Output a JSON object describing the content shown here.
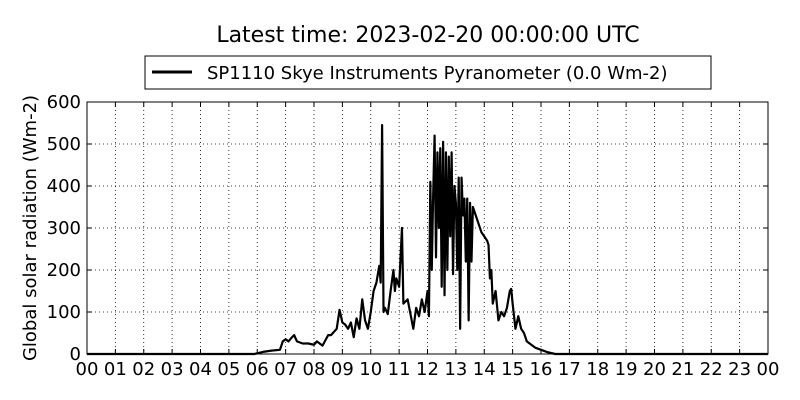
{
  "chart_data": {
    "type": "line",
    "title": "Latest time: 2023-02-20 00:00:00 UTC",
    "ylabel": "Global solar radiation (Wm-2)",
    "grid": true,
    "xlim": [
      0,
      24
    ],
    "ylim": [
      0,
      600
    ],
    "yticks": [
      0,
      100,
      200,
      300,
      400,
      500,
      600
    ],
    "xticks": [
      {
        "value": 0,
        "label": "00"
      },
      {
        "value": 1,
        "label": "01"
      },
      {
        "value": 2,
        "label": "02"
      },
      {
        "value": 3,
        "label": "03"
      },
      {
        "value": 4,
        "label": "04"
      },
      {
        "value": 5,
        "label": "05"
      },
      {
        "value": 6,
        "label": "06"
      },
      {
        "value": 7,
        "label": "07"
      },
      {
        "value": 8,
        "label": "08"
      },
      {
        "value": 9,
        "label": "09"
      },
      {
        "value": 10,
        "label": "10"
      },
      {
        "value": 11,
        "label": "11"
      },
      {
        "value": 12,
        "label": "12"
      },
      {
        "value": 13,
        "label": "13"
      },
      {
        "value": 14,
        "label": "14"
      },
      {
        "value": 15,
        "label": "15"
      },
      {
        "value": 16,
        "label": "16"
      },
      {
        "value": 17,
        "label": "17"
      },
      {
        "value": 18,
        "label": "18"
      },
      {
        "value": 19,
        "label": "19"
      },
      {
        "value": 20,
        "label": "20"
      },
      {
        "value": 21,
        "label": "21"
      },
      {
        "value": 22,
        "label": "22"
      },
      {
        "value": 23,
        "label": "23"
      },
      {
        "value": 24,
        "label": "00"
      }
    ],
    "x": [
      0,
      5.9,
      6.2,
      6.5,
      6.8,
      6.9,
      7.0,
      7.1,
      7.2,
      7.3,
      7.4,
      7.6,
      7.8,
      8.0,
      8.1,
      8.2,
      8.3,
      8.5,
      8.6,
      8.8,
      8.9,
      9.0,
      9.1,
      9.2,
      9.3,
      9.4,
      9.5,
      9.6,
      9.7,
      9.8,
      9.9,
      10.0,
      10.1,
      10.2,
      10.3,
      10.35,
      10.4,
      10.45,
      10.5,
      10.6,
      10.7,
      10.8,
      10.85,
      10.9,
      11.0,
      11.1,
      11.15,
      11.3,
      11.4,
      11.5,
      11.6,
      11.7,
      11.8,
      11.9,
      12.0,
      12.05,
      12.1,
      12.15,
      12.2,
      12.25,
      12.3,
      12.35,
      12.4,
      12.45,
      12.5,
      12.55,
      12.6,
      12.65,
      12.7,
      12.75,
      12.8,
      12.85,
      12.9,
      12.95,
      13.0,
      13.05,
      13.1,
      13.15,
      13.2,
      13.25,
      13.3,
      13.35,
      13.4,
      13.45,
      13.5,
      13.55,
      13.6,
      13.7,
      13.8,
      13.9,
      14.0,
      14.1,
      14.15,
      14.2,
      14.25,
      14.3,
      14.4,
      14.5,
      14.6,
      14.7,
      14.8,
      14.9,
      14.95,
      15.0,
      15.1,
      15.2,
      15.3,
      15.4,
      15.5,
      15.7,
      15.8,
      16.0,
      16.2,
      16.5,
      24
    ],
    "series": [
      {
        "name": "SP1110 Skye Instruments Pyranometer (0.0 Wm-2)",
        "color": "#000000",
        "values": [
          0,
          0,
          5,
          8,
          10,
          30,
          35,
          30,
          38,
          45,
          30,
          25,
          25,
          22,
          30,
          25,
          20,
          45,
          45,
          60,
          105,
          75,
          70,
          60,
          75,
          40,
          85,
          60,
          130,
          80,
          60,
          100,
          150,
          170,
          210,
          170,
          545,
          100,
          110,
          95,
          150,
          200,
          150,
          180,
          160,
          300,
          120,
          130,
          95,
          60,
          110,
          90,
          130,
          100,
          150,
          90,
          410,
          200,
          380,
          520,
          230,
          480,
          300,
          490,
          160,
          505,
          140,
          480,
          200,
          470,
          280,
          480,
          190,
          400,
          360,
          200,
          420,
          60,
          420,
          330,
          370,
          220,
          370,
          80,
          360,
          220,
          350,
          330,
          310,
          290,
          280,
          270,
          260,
          180,
          200,
          120,
          150,
          80,
          100,
          90,
          110,
          150,
          155,
          120,
          60,
          90,
          60,
          50,
          30,
          20,
          15,
          10,
          5,
          0,
          0
        ]
      }
    ]
  }
}
